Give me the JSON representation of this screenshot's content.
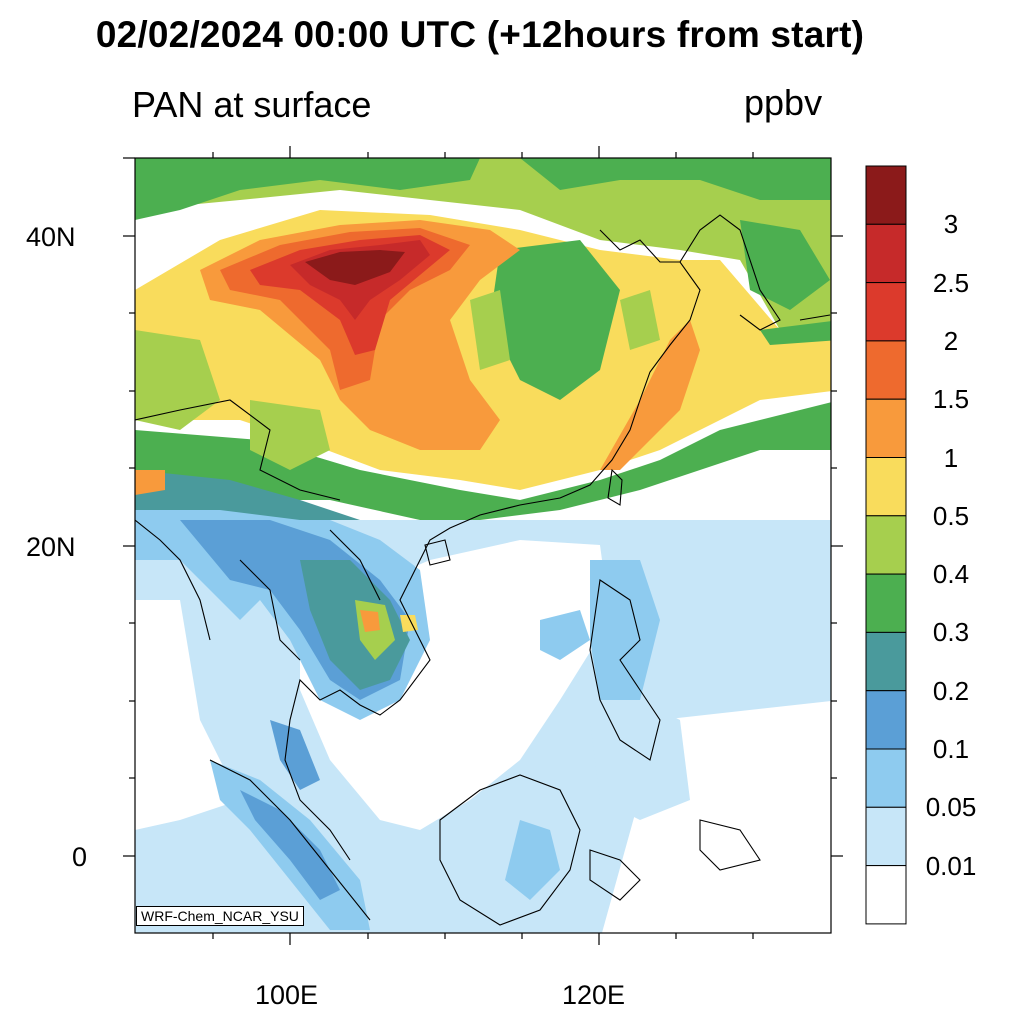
{
  "header": {
    "title": "02/02/2024 00:00 UTC (+12hours from start)",
    "subtitle": "PAN at surface",
    "units": "ppbv"
  },
  "axes": {
    "lat_labels": [
      "40N",
      "20N",
      "0"
    ],
    "lon_labels": [
      "100E",
      "120E"
    ]
  },
  "colorbar": {
    "labels": [
      "3",
      "2.5",
      "2",
      "1.5",
      "1",
      "0.5",
      "0.4",
      "0.3",
      "0.2",
      "0.1",
      "0.05",
      "0.01"
    ],
    "colors": [
      "#8b1a1a",
      "#c62a2a",
      "#dc3a2c",
      "#ee6a2e",
      "#f89a3c",
      "#f9dc5c",
      "#a6cf4e",
      "#4caf50",
      "#4a9a9c",
      "#5b9fd6",
      "#8ecbef",
      "#c7e6f8",
      "#ffffff"
    ]
  },
  "credit": "WRF-Chem_NCAR_YSU"
}
